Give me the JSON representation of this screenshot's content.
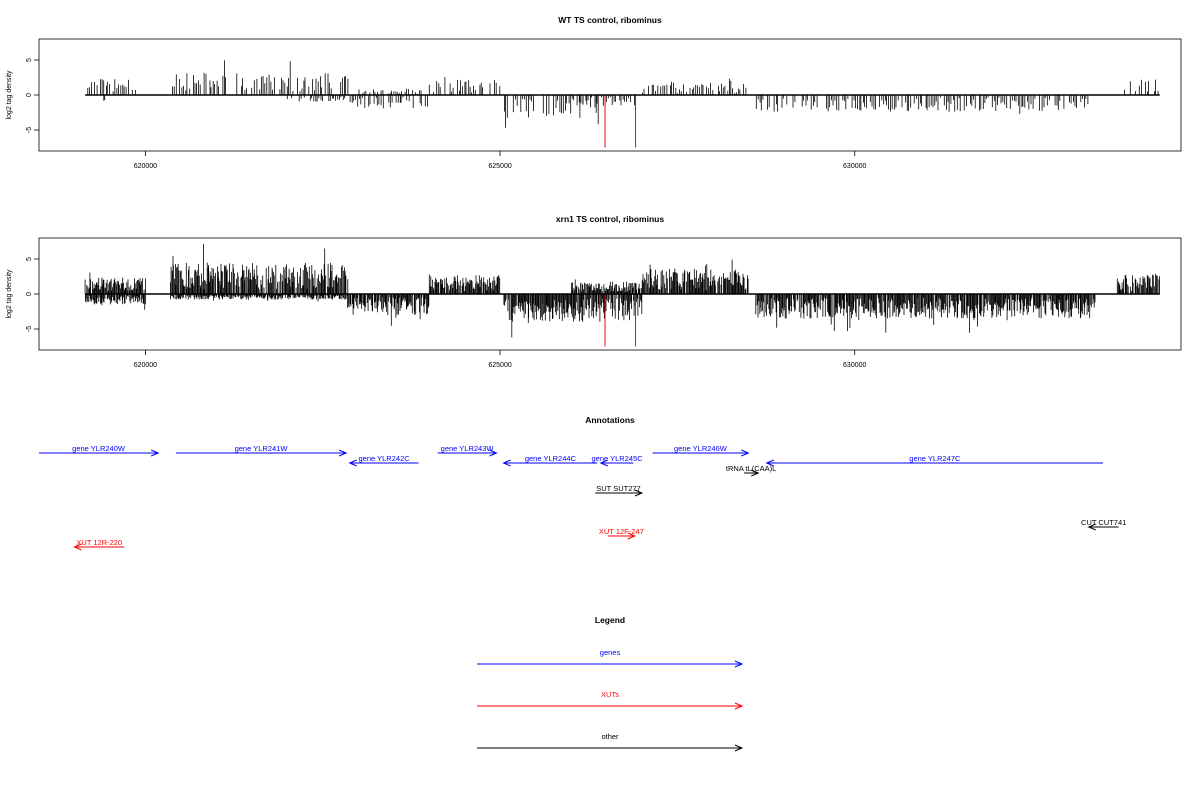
{
  "colors": {
    "genes": "#0000ff",
    "xuts": "#ff0000",
    "other": "#000000",
    "signal": "#000000",
    "highlight": "#ff0000"
  },
  "chart_data": [
    {
      "type": "bar",
      "title": "WT TS control, ribominus",
      "ylabel": "log2 tag density",
      "xlim": [
        618500,
        634600
      ],
      "ylim": [
        -8,
        8
      ],
      "xticks": [
        620000,
        625000,
        630000
      ],
      "xtick_labels": [
        "620000",
        "625000",
        "630000"
      ],
      "yticks": [
        5,
        0,
        -5
      ],
      "ytick_labels": [
        "5",
        "0",
        "-5"
      ],
      "grid": false,
      "profile": [
        {
          "start": 619150,
          "end": 619900,
          "strand": "+",
          "amp": 2.4
        },
        {
          "start": 619400,
          "end": 619500,
          "strand": "-",
          "amp": 0.9
        },
        {
          "start": 620350,
          "end": 622850,
          "strand": "+",
          "amp": 3.2
        },
        {
          "start": 622000,
          "end": 622850,
          "strand": "-",
          "amp": 1.0
        },
        {
          "start": 622850,
          "end": 624000,
          "strand": "-",
          "amp": 2.0
        },
        {
          "start": 623000,
          "end": 623900,
          "strand": "+",
          "amp": 0.8
        },
        {
          "start": 624000,
          "end": 625000,
          "strand": "+",
          "amp": 2.2
        },
        {
          "start": 625050,
          "end": 626400,
          "strand": "-",
          "amp": 3.3
        },
        {
          "start": 626000,
          "end": 626900,
          "strand": "-",
          "amp": 1.6
        },
        {
          "start": 627000,
          "end": 628500,
          "strand": "+",
          "amp": 1.6
        },
        {
          "start": 628600,
          "end": 633400,
          "strand": "-",
          "amp": 2.4
        },
        {
          "start": 633800,
          "end": 634300,
          "strand": "+",
          "amp": 2.3
        }
      ],
      "highlights": [
        {
          "x": 626480,
          "value": -7.5
        },
        {
          "x": 626910,
          "value": -7.5
        }
      ]
    },
    {
      "type": "bar",
      "title": "xrn1 TS control, ribominus",
      "ylabel": "log2 tag density",
      "xlim": [
        618500,
        634600
      ],
      "ylim": [
        -8,
        8
      ],
      "xticks": [
        620000,
        625000,
        630000
      ],
      "xtick_labels": [
        "620000",
        "625000",
        "630000"
      ],
      "yticks": [
        5,
        0,
        -5
      ],
      "ytick_labels": [
        "5",
        "0",
        "-5"
      ],
      "grid": false,
      "profile": [
        {
          "start": 619150,
          "end": 620000,
          "strand": "+",
          "amp": 2.4
        },
        {
          "start": 619150,
          "end": 620000,
          "strand": "-",
          "amp": 1.5
        },
        {
          "start": 620350,
          "end": 622850,
          "strand": "+",
          "amp": 4.5
        },
        {
          "start": 620350,
          "end": 622850,
          "strand": "-",
          "amp": 0.8
        },
        {
          "start": 622850,
          "end": 624000,
          "strand": "-",
          "amp": 3.0
        },
        {
          "start": 624000,
          "end": 625000,
          "strand": "+",
          "amp": 2.7
        },
        {
          "start": 625050,
          "end": 627000,
          "strand": "-",
          "amp": 4.0
        },
        {
          "start": 626000,
          "end": 627000,
          "strand": "+",
          "amp": 1.8
        },
        {
          "start": 627000,
          "end": 628500,
          "strand": "+",
          "amp": 3.6
        },
        {
          "start": 628600,
          "end": 633400,
          "strand": "-",
          "amp": 3.5
        },
        {
          "start": 633700,
          "end": 634300,
          "strand": "+",
          "amp": 2.9
        }
      ],
      "highlights": [
        {
          "x": 626480,
          "value": -7.5
        },
        {
          "x": 626910,
          "value": -7.5
        }
      ]
    }
  ],
  "annotations": {
    "title": "Annotations",
    "xlim": [
      618500,
      634600
    ],
    "features": [
      {
        "label": "gene YLR240W",
        "start": 618500,
        "end": 620180,
        "strand": "+",
        "kind": "gene",
        "row": 0
      },
      {
        "label": "gene YLR241W",
        "start": 620430,
        "end": 622830,
        "strand": "+",
        "kind": "gene",
        "row": 0
      },
      {
        "label": "gene YLR242C",
        "start": 622880,
        "end": 623850,
        "strand": "-",
        "kind": "gene",
        "row": 1
      },
      {
        "label": "gene YLR243W",
        "start": 624120,
        "end": 624950,
        "strand": "+",
        "kind": "gene",
        "row": 0
      },
      {
        "label": "gene YLR244C",
        "start": 625050,
        "end": 626370,
        "strand": "-",
        "kind": "gene",
        "row": 1
      },
      {
        "label": "gene YLR245C",
        "start": 626420,
        "end": 626880,
        "strand": "-",
        "kind": "gene",
        "row": 1
      },
      {
        "label": "gene YLR246W",
        "start": 627150,
        "end": 628500,
        "strand": "+",
        "kind": "gene",
        "row": 0
      },
      {
        "label": "gene YLR247C",
        "start": 628760,
        "end": 633500,
        "strand": "-",
        "kind": "gene",
        "row": 1
      },
      {
        "label": "tRNA tL(CAA)L",
        "start": 628440,
        "end": 628640,
        "strand": "+",
        "kind": "other",
        "row": 2
      },
      {
        "label": "SUT SUT277",
        "start": 626340,
        "end": 627000,
        "strand": "+",
        "kind": "other",
        "row": 3
      },
      {
        "label": "XUT 12F-247",
        "start": 626520,
        "end": 626900,
        "strand": "+",
        "kind": "xut",
        "row": 4
      },
      {
        "label": "XUT 12R-220",
        "start": 619000,
        "end": 619700,
        "strand": "-",
        "kind": "xut",
        "row": 5
      },
      {
        "label": "CUT CUT741",
        "start": 633300,
        "end": 633720,
        "strand": "-",
        "kind": "other",
        "row": 6
      }
    ]
  },
  "legend": {
    "title": "Legend",
    "entries": [
      {
        "label": "genes",
        "kind": "gene"
      },
      {
        "label": "XUTs",
        "kind": "xut"
      },
      {
        "label": "other",
        "kind": "other"
      }
    ]
  }
}
